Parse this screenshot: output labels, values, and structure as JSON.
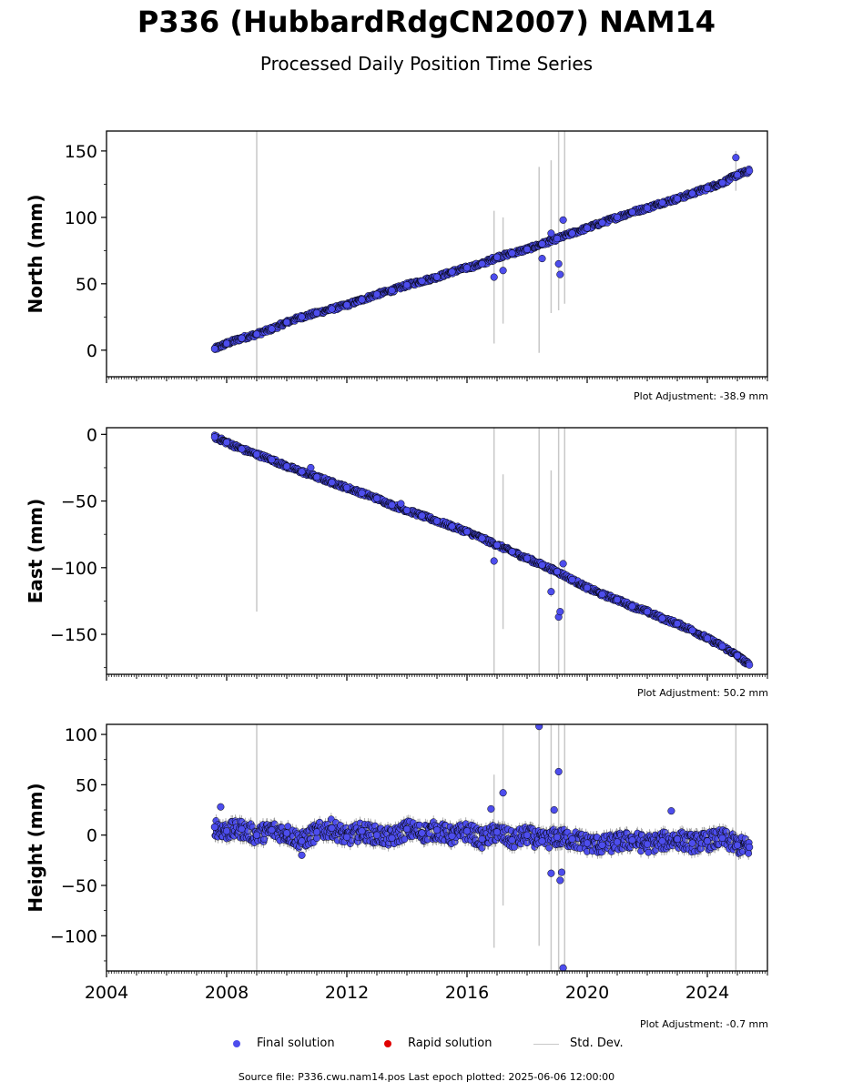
{
  "title": "P336 (HubbardRdgCN2007) NAM14",
  "subtitle": "Processed Daily Position Time Series",
  "footer": "Source file: P336.cwu.nam14.pos  Last epoch plotted: 2025-06-06 12:00:00",
  "legend": {
    "final": "Final solution",
    "rapid": "Rapid solution",
    "stddev": "Std. Dev."
  },
  "colors": {
    "final": "#4d4ded",
    "rapid": "#e00000",
    "stddev": "#c8c8c8",
    "point_edge": "#000000"
  },
  "chart_data": [
    {
      "type": "scatter",
      "panel": "north",
      "ylabel": "North (mm)",
      "xlim": [
        2004,
        2026
      ],
      "ylim": [
        -20,
        165
      ],
      "yticks": [
        0,
        50,
        100,
        150
      ],
      "xticks": [
        2004,
        2008,
        2012,
        2016,
        2020,
        2024
      ],
      "adjustment": "Plot Adjustment: -38.9 mm",
      "series": [
        {
          "label": "final",
          "x": [
            2007.6,
            2008.0,
            2008.5,
            2009.0,
            2009.5,
            2010.0,
            2010.5,
            2011.0,
            2011.5,
            2012.0,
            2012.5,
            2013.0,
            2013.5,
            2014.0,
            2014.5,
            2015.0,
            2015.5,
            2016.0,
            2016.5,
            2017.0,
            2017.5,
            2018.0,
            2018.5,
            2019.0,
            2019.5,
            2020.0,
            2020.5,
            2021.0,
            2021.5,
            2022.0,
            2022.5,
            2023.0,
            2023.5,
            2024.0,
            2024.5,
            2025.0,
            2025.4
          ],
          "y": [
            1,
            5,
            9,
            12,
            16,
            21,
            25,
            28,
            31,
            34,
            38,
            42,
            45,
            49,
            52,
            55,
            59,
            62,
            65,
            70,
            73,
            76,
            80,
            84,
            88,
            92,
            96,
            100,
            104,
            107,
            111,
            114,
            118,
            122,
            126,
            132,
            135
          ],
          "outliers": [
            [
              2016.9,
              55
            ],
            [
              2017.2,
              60
            ],
            [
              2018.5,
              69
            ],
            [
              2019.05,
              65
            ],
            [
              2019.1,
              57
            ],
            [
              2019.2,
              98
            ],
            [
              2018.8,
              88
            ],
            [
              2024.95,
              145
            ]
          ]
        }
      ],
      "std_dev_bars": [
        [
          2009.0,
          -20,
          165
        ],
        [
          2016.9,
          5,
          105
        ],
        [
          2017.2,
          20,
          100
        ],
        [
          2018.4,
          -2,
          138
        ],
        [
          2018.8,
          28,
          143
        ],
        [
          2019.05,
          30,
          165
        ],
        [
          2019.25,
          35,
          165
        ],
        [
          2024.95,
          120,
          150
        ]
      ]
    },
    {
      "type": "scatter",
      "panel": "east",
      "ylabel": "East (mm)",
      "xlim": [
        2004,
        2026
      ],
      "ylim": [
        -180,
        5
      ],
      "yticks": [
        0,
        -50,
        -100,
        -150
      ],
      "xticks": [
        2004,
        2008,
        2012,
        2016,
        2020,
        2024
      ],
      "adjustment": "Plot Adjustment: 50.2 mm",
      "series": [
        {
          "label": "final",
          "x": [
            2007.6,
            2008.0,
            2008.5,
            2009.0,
            2009.5,
            2010.0,
            2010.5,
            2011.0,
            2011.5,
            2012.0,
            2012.5,
            2013.0,
            2013.5,
            2014.0,
            2014.5,
            2015.0,
            2015.5,
            2016.0,
            2016.5,
            2017.0,
            2017.5,
            2018.0,
            2018.5,
            2019.0,
            2019.5,
            2020.0,
            2020.5,
            2021.0,
            2021.5,
            2022.0,
            2022.5,
            2023.0,
            2023.5,
            2024.0,
            2024.5,
            2025.0,
            2025.4
          ],
          "y": [
            -2,
            -6,
            -11,
            -15,
            -19,
            -24,
            -28,
            -32,
            -36,
            -40,
            -44,
            -48,
            -53,
            -57,
            -61,
            -65,
            -69,
            -73,
            -78,
            -83,
            -88,
            -93,
            -98,
            -103,
            -109,
            -115,
            -120,
            -124,
            -129,
            -133,
            -138,
            -142,
            -147,
            -153,
            -159,
            -166,
            -173
          ],
          "outliers": [
            [
              2016.9,
              -95
            ],
            [
              2018.8,
              -118
            ],
            [
              2019.05,
              -137
            ],
            [
              2019.1,
              -133
            ],
            [
              2019.2,
              -97
            ],
            [
              2010.8,
              -25
            ],
            [
              2013.8,
              -52
            ]
          ]
        }
      ],
      "std_dev_bars": [
        [
          2009.0,
          -133,
          5
        ],
        [
          2016.9,
          -180,
          5
        ],
        [
          2017.2,
          -146,
          -30
        ],
        [
          2018.4,
          -180,
          5
        ],
        [
          2018.8,
          -122,
          -27
        ],
        [
          2019.05,
          -180,
          5
        ],
        [
          2019.25,
          -180,
          5
        ],
        [
          2024.95,
          -180,
          5
        ]
      ]
    },
    {
      "type": "scatter",
      "panel": "height",
      "ylabel": "Height (mm)",
      "xlim": [
        2004,
        2026
      ],
      "ylim": [
        -135,
        110
      ],
      "yticks": [
        100,
        50,
        0,
        -50,
        -100
      ],
      "xticks": [
        2004,
        2008,
        2012,
        2016,
        2020,
        2024
      ],
      "xticklabels": [
        "2004",
        "2008",
        "2012",
        "2016",
        "2020",
        "2024"
      ],
      "adjustment": "Plot Adjustment: -0.7 mm",
      "series": [
        {
          "label": "final",
          "x": [
            2007.6,
            2008.0,
            2008.5,
            2009.0,
            2009.5,
            2010.0,
            2010.5,
            2011.0,
            2011.5,
            2012.0,
            2012.5,
            2013.0,
            2013.5,
            2014.0,
            2014.5,
            2015.0,
            2015.5,
            2016.0,
            2016.5,
            2017.0,
            2017.5,
            2018.0,
            2018.5,
            2019.0,
            2019.5,
            2020.0,
            2020.5,
            2021.0,
            2021.5,
            2022.0,
            2022.5,
            2023.0,
            2023.5,
            2024.0,
            2024.5,
            2025.0,
            2025.4
          ],
          "y": [
            8,
            4,
            6,
            0,
            5,
            2,
            -6,
            3,
            7,
            -2,
            4,
            0,
            -3,
            6,
            2,
            5,
            -1,
            4,
            -4,
            3,
            -5,
            0,
            -6,
            -2,
            -4,
            -8,
            -10,
            -7,
            -5,
            -9,
            -6,
            -4,
            -8,
            -6,
            -3,
            -10,
            -12
          ],
          "outliers": [
            [
              2007.8,
              28
            ],
            [
              2010.5,
              -20
            ],
            [
              2016.8,
              26
            ],
            [
              2017.2,
              42
            ],
            [
              2018.4,
              108
            ],
            [
              2018.8,
              -38
            ],
            [
              2018.9,
              25
            ],
            [
              2019.05,
              63
            ],
            [
              2019.1,
              -45
            ],
            [
              2019.15,
              -37
            ],
            [
              2019.2,
              -132
            ],
            [
              2022.8,
              24
            ]
          ]
        }
      ],
      "std_dev_bars": [
        [
          2009.0,
          -135,
          110
        ],
        [
          2016.9,
          -112,
          60
        ],
        [
          2017.2,
          -70,
          110
        ],
        [
          2018.4,
          -110,
          110
        ],
        [
          2018.8,
          -135,
          110
        ],
        [
          2019.05,
          -135,
          110
        ],
        [
          2019.25,
          -135,
          110
        ],
        [
          2024.95,
          -135,
          110
        ]
      ]
    }
  ]
}
